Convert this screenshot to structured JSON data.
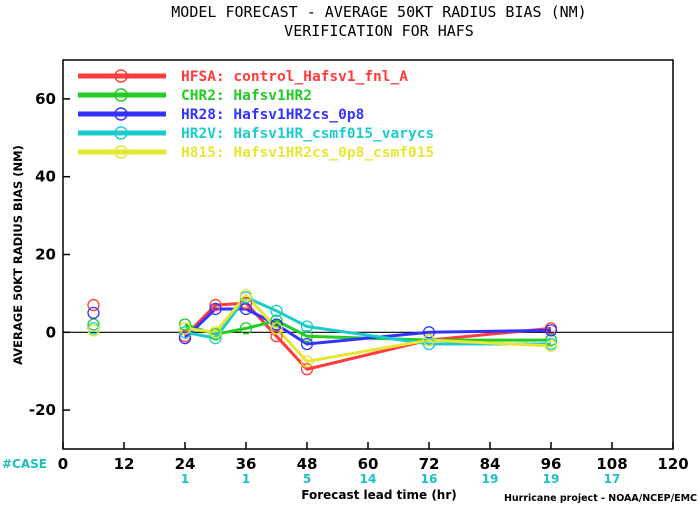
{
  "chart_data": {
    "type": "line",
    "title": "MODEL FORECAST - AVERAGE 50KT RADIUS BIAS (NM)",
    "subtitle": "VERIFICATION FOR HAFS",
    "xlabel": "Forecast lead time (hr)",
    "ylabel": "AVERAGE 50KT RADIUS BIAS (NM)",
    "xlim": [
      0,
      120
    ],
    "ylim": [
      -30,
      70
    ],
    "x_ticks": [
      0,
      12,
      24,
      36,
      48,
      60,
      72,
      84,
      96,
      108,
      120
    ],
    "y_ticks": [
      -20,
      0,
      20,
      40,
      60
    ],
    "grid": false,
    "zero_line": true,
    "legend_position": "top-left",
    "series": [
      {
        "name": "HFSA",
        "label": "HFSA: control_Hafsv1_fnl_A",
        "color": "#ff3b3b",
        "x": [
          6,
          24,
          30,
          36,
          42,
          48,
          72,
          96
        ],
        "y": [
          7,
          -1,
          7,
          7.5,
          -1,
          -9.5,
          -2,
          1
        ]
      },
      {
        "name": "CHR2",
        "label": "CHR2: Hafsv1HR2",
        "color": "#22cc22",
        "x": [
          6,
          24,
          30,
          36,
          42,
          48,
          72,
          96
        ],
        "y": [
          2,
          2,
          -0.5,
          1,
          3,
          -1,
          -2,
          -2
        ]
      },
      {
        "name": "HR28",
        "label": "HR28: Hafsv1HR2cs_0p8",
        "color": "#3333ff",
        "x": [
          6,
          24,
          30,
          36,
          42,
          48,
          72,
          96
        ],
        "y": [
          5,
          -1.5,
          6,
          6,
          2,
          -3,
          0,
          0.5
        ]
      },
      {
        "name": "HR2V",
        "label": "HR2V: Hafsv1HR_csmf015_varycs",
        "color": "#1ccccc",
        "x": [
          6,
          24,
          30,
          36,
          42,
          48,
          72,
          96
        ],
        "y": [
          1,
          0,
          -1.5,
          9,
          5.5,
          1.5,
          -3,
          -3
        ]
      },
      {
        "name": "H815",
        "label": "H815: Hafsv1HR2cs_0p8_csmf015",
        "color": "#e6e633",
        "x": [
          6,
          24,
          30,
          36,
          42,
          48,
          72,
          96
        ],
        "y": [
          0.5,
          1,
          0,
          9.5,
          1,
          -7.5,
          -2,
          -3.5
        ]
      }
    ],
    "cases": {
      "label": "#CASE",
      "x": [
        24,
        36,
        48,
        60,
        72,
        84,
        96,
        108
      ],
      "values": [
        "1",
        "1",
        "5",
        "14",
        "16",
        "19",
        "19",
        "17"
      ],
      "color": "#1cc0c0"
    },
    "credit": "Hurricane project - NOAA/NCEP/EMC"
  }
}
